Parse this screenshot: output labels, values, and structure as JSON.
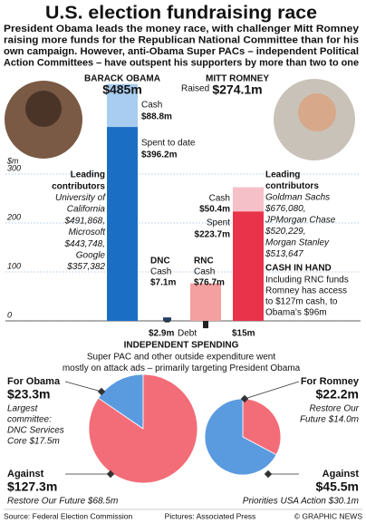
{
  "title": "U.S. election fundraising race",
  "subtitle_lines": [
    "President Obama leads the money race, with challenger Mitt Romney",
    "raising more funds for the Republican National Committee than for his",
    "own campaign. However, anti-Obama Super PACs – independent Political",
    "Action Committees – have outspent his supporters by more than two to one"
  ],
  "chart_data": [
    {
      "type": "bar",
      "ylabel": "$m",
      "ylim": [
        0,
        500
      ],
      "yticks": [
        0,
        100,
        200,
        300
      ],
      "grid": true,
      "categories": [
        "BARACK OBAMA",
        "DNC",
        "RNC",
        "MITT ROMNEY"
      ],
      "totals": [
        485,
        null,
        null,
        274.1
      ],
      "total_labels": [
        "$485m",
        null,
        null,
        "$274.1m"
      ],
      "raised_label": "Raised",
      "series": [
        {
          "name": "Spent to date",
          "color": "#1a6fc4",
          "colors": [
            "#1a6fc4",
            null,
            null,
            "#e8334a"
          ],
          "values": [
            396.2,
            null,
            null,
            223.7
          ],
          "value_labels": [
            "$396.2m",
            null,
            null,
            "$223.7m"
          ],
          "point_names": [
            "Spent to date",
            null,
            null,
            "Spent"
          ]
        },
        {
          "name": "Cash",
          "color": "#a8cdf0",
          "colors": [
            "#a8cdf0",
            "#2a3f66",
            "#f4a0a0",
            "#f6c0c8"
          ],
          "values": [
            88.8,
            7.1,
            76.7,
            50.4
          ],
          "value_labels": [
            "$88.8m",
            "$7.1m",
            "$76.7m",
            "$50.4m"
          ],
          "point_names": [
            "Cash",
            "Cash",
            "Cash",
            "Cash"
          ]
        },
        {
          "name": "Debt",
          "color": "#222222",
          "values": [
            null,
            2.9,
            15,
            null
          ],
          "value_labels": [
            null,
            "$2.9m",
            "$15m",
            null
          ]
        }
      ],
      "annotations": {
        "left": [
          "Leading",
          "contributors",
          "University of",
          "California",
          "$491,868,",
          "Microsoft",
          "$443,748,",
          "Google",
          "$357,382"
        ],
        "right": [
          "Leading",
          "contributors",
          "Goldman Sachs",
          "$676,080,",
          "JPMorgan Chase",
          "$520,229,",
          "Morgan Stanley",
          "$513,647"
        ],
        "cash_in_hand": {
          "title": "CASH IN HAND",
          "lines": [
            "Including RNC funds",
            "Romney has access",
            "to $127m cash, to",
            "Obama’s $96m"
          ]
        }
      }
    },
    {
      "type": "pie",
      "categories": [
        "For Obama",
        "Against"
      ],
      "values": [
        23.3,
        127.3
      ],
      "value_labels": [
        "$23.3m",
        "$127.3m"
      ],
      "colors": [
        "#5a9be0",
        "#f26d78"
      ],
      "details": [
        [
          "Largest",
          "committee:",
          "DNC Services",
          "Core $17.5m"
        ],
        [
          "Restore Our Future $68.5m"
        ]
      ]
    },
    {
      "type": "pie",
      "categories": [
        "For Romney",
        "Against"
      ],
      "values": [
        22.2,
        45.5
      ],
      "value_labels": [
        "$22.2m",
        "$45.5m"
      ],
      "colors": [
        "#f26d78",
        "#5a9be0"
      ],
      "details": [
        [
          "Restore Our",
          "Future $14.0m"
        ],
        [
          "Priorities USA Action $30.1m"
        ]
      ]
    }
  ],
  "spending": {
    "title": "INDEPENDENT SPENDING",
    "lines": [
      "Super PAC and other outside expenditure went",
      "mostly on attack ads – primarily targeting President Obama"
    ]
  },
  "footer": {
    "source": "Source: Federal Election Commission",
    "pictures": "Pictures: Associated Press",
    "credit": "© GRAPHIC NEWS"
  }
}
